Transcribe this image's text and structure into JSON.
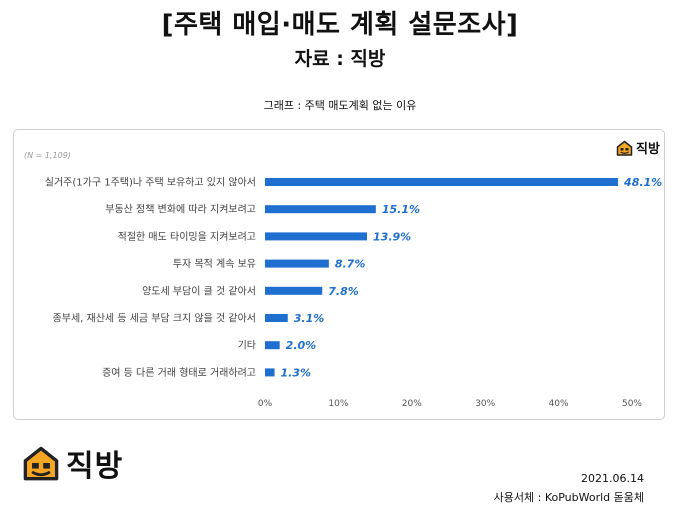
{
  "header": {
    "title": "[주택 매입·매도 계획 설문조사]",
    "source": "자료 : 직방"
  },
  "graph_caption": "그래프 : 주택 매도계획 없는 이유",
  "brand": {
    "name": "직방",
    "accent": "#F5A623",
    "dark": "#222222"
  },
  "footer": {
    "date": "2021.06.14",
    "font_note": "사용서체 : KoPubWorld 돋움체"
  },
  "chart_data": {
    "type": "bar",
    "orientation": "horizontal",
    "title": "",
    "sample_note": "(N = 1,109)",
    "categories": [
      "실거주(1가구 1주택)나 주택 보유하고 있지 않아서",
      "부동산 정책 변화에 따라 지켜보려고",
      "적절한 매도 타이밍을 지켜보려고",
      "투자 목적 계속 보유",
      "양도세 부담이 클 것 같아서",
      "종부세, 재산세 등 세금 부담 크지 않을 것 같아서",
      "기타",
      "증여 등 다른 거래 형태로 거래하려고"
    ],
    "values": [
      48.1,
      15.1,
      13.9,
      8.7,
      7.8,
      3.1,
      2.0,
      1.3
    ],
    "value_labels": [
      "48.1%",
      "15.1%",
      "13.9%",
      "8.7%",
      "7.8%",
      "3.1%",
      "2.0%",
      "1.3%"
    ],
    "xlim": [
      0,
      50
    ],
    "xticks": [
      0,
      10,
      20,
      30,
      40,
      50
    ],
    "xtick_labels": [
      "0%",
      "10%",
      "20%",
      "30%",
      "40%",
      "50%"
    ],
    "bar_color": "#1F6FD0",
    "label_color": "#1F6FD0",
    "grid": false
  }
}
